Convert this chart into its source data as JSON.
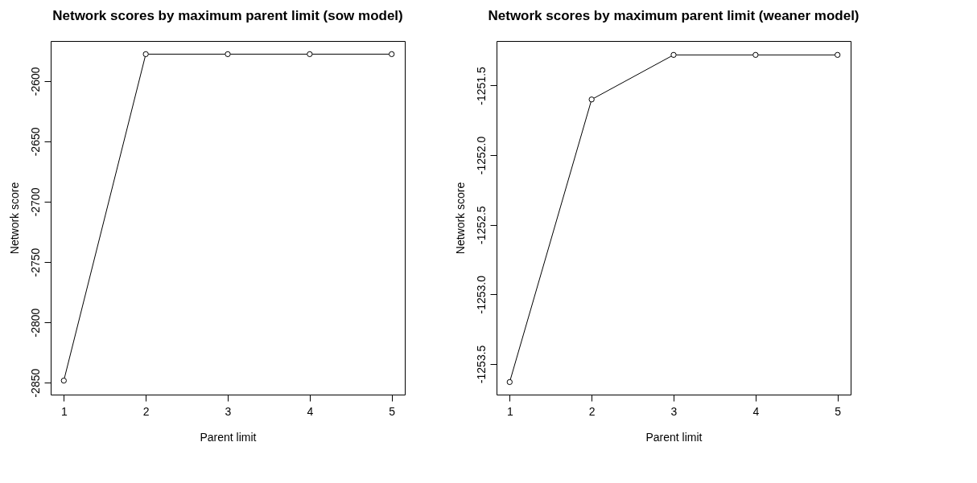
{
  "chart_data": [
    {
      "type": "line",
      "title": "Network scores by maximum parent limit (sow model)",
      "xlabel": "Parent limit",
      "ylabel": "Network score",
      "x": [
        1,
        2,
        3,
        4,
        5
      ],
      "series": [
        {
          "color": "#000000",
          "values": [
            -2848.3,
            -2577.7,
            -2577.7,
            -2577.7,
            -2577.7
          ]
        }
      ],
      "xlim": [
        0.84,
        5.16
      ],
      "xticks": [
        1,
        2,
        3,
        4,
        5
      ],
      "ylim": [
        -2859.9,
        -2566.8
      ],
      "yticks": [
        -2850,
        -2800,
        -2750,
        -2700,
        -2650,
        -2600
      ],
      "grid": false,
      "marker": "circle",
      "line_style": "solid"
    },
    {
      "type": "line",
      "title": "Network scores by maximum parent limit (weaner model)",
      "xlabel": "Parent limit",
      "ylabel": "Network score",
      "x": [
        1,
        2,
        3,
        4,
        5
      ],
      "series": [
        {
          "color": "#000000",
          "values": [
            -1253.63,
            -1251.6,
            -1251.28,
            -1251.28,
            -1251.28
          ]
        }
      ],
      "xlim": [
        0.84,
        5.16
      ],
      "xticks": [
        1,
        2,
        3,
        4,
        5
      ],
      "ylim": [
        -1253.72,
        -1251.18
      ],
      "yticks": [
        {
          "value": -1253.5,
          "label": "-1253.5"
        },
        {
          "value": -1253.0,
          "label": "-1253.0"
        },
        {
          "value": -1252.5,
          "label": "-1252.5"
        },
        {
          "value": -1252.0,
          "label": "-1252.0"
        },
        {
          "value": -1251.5,
          "label": "-1251.5"
        }
      ],
      "grid": false,
      "marker": "circle",
      "line_style": "solid"
    }
  ]
}
